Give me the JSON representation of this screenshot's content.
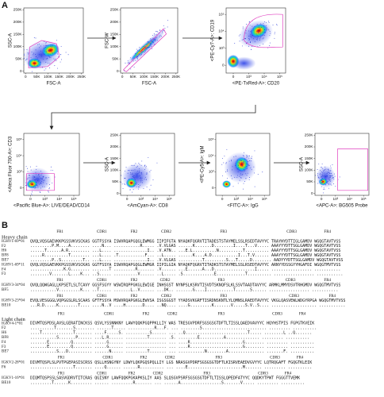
{
  "panel_a": {
    "label": "A",
    "plots": [
      {
        "ylabel": "SSC-A",
        "xlabel": "FSC-A",
        "yticks": [
          "0",
          "50K",
          "100K",
          "150K",
          "200K",
          "250K"
        ],
        "xticks": [
          "0",
          "50K",
          "100K",
          "150K",
          "200K",
          "250K"
        ]
      },
      {
        "ylabel": "FSC-W",
        "xlabel": "FSC-A",
        "yticks": [
          "0",
          "50K",
          "100K",
          "150K",
          "200K",
          "250K"
        ],
        "xticks": [
          "0",
          "50K",
          "100K",
          "150K",
          "200K",
          "250K"
        ]
      },
      {
        "ylabel": "<PE-Cy7-A>: CD19",
        "xlabel": "<PE-TxRed-A>: CD20",
        "yticks": [
          "0",
          "10³",
          "10⁴",
          "10⁵"
        ],
        "xticks": [
          "0",
          "10³",
          "10⁴",
          "10⁵"
        ]
      },
      {
        "ylabel": "<Alexa Fluor 700-A>: CD3",
        "xlabel": "<Pacific Blue-A>: LIVE/DEAD/CD14",
        "yticks": [
          "0",
          "10³",
          "10⁴",
          "10⁵"
        ],
        "xticks": [
          "0",
          "10³",
          "10⁴",
          "10⁵"
        ]
      },
      {
        "ylabel": "SSC-A",
        "xlabel": "<AmCyan-A>: CD8",
        "yticks": [
          "0",
          "50K",
          "100K",
          "150K",
          "200K",
          "250K"
        ],
        "xticks": [
          "0",
          "10³",
          "10⁴",
          "10⁵"
        ]
      },
      {
        "ylabel": "<PE-Cy5-A>: IgM",
        "xlabel": "<FITC-A>: IgG",
        "yticks": [
          "0",
          "10³",
          "10⁴",
          "10⁵"
        ],
        "xticks": [
          "0",
          "10³",
          "10⁴",
          "10⁵"
        ]
      },
      {
        "ylabel": "SSC-A",
        "xlabel": "<APC-A>: BG505 Probe",
        "yticks": [
          "0",
          "50K",
          "100K",
          "150K",
          "200K",
          "250K"
        ],
        "xticks": [
          "0",
          "10³",
          "10⁴",
          "10⁵"
        ]
      }
    ]
  },
  "panel_b": {
    "label": "B",
    "sections": [
      {
        "title": "Heavy chain",
        "blocks": [
          {
            "headers": [
              "FR1",
              "CDR1",
              "FR2",
              "CDR2",
              "FR3",
              "CDR3",
              "FR4"
            ],
            "rows": [
              [
                "IGHV1-69*01",
                "QVQLVQSGAEVKKPGSSVKVSCKAS GGTFSSYA ISWVRQAPGQGLEWMGG IIPIFGTA NYAQKFQGRVTITADESTSTAYMELSSLRSEDTAVYYC TRAYHYDTTIGLGAMDV WGQGTAVTVSS"
              ],
              [
                "F2",
                ".........P.M....A........ ....N... ...........R..... .V.VLGAS ......K.......D........I....T...V..... AAAYYYDTTSGLGAMDV WGQGTAVTVSS"
              ],
              [
                "H6",
                "......T......A.R......... ...L.... ..............I.. .V.ATN.. ...E.L..........N..........T.......... AAAYYYDTTSGLGAMDV WGQGTAVTVSS"
              ],
              [
                "BF8",
                ".....R..........T........ ...L.... .T...........F... ..L..... ......K....A.D...........I...T.V...... AAAYYYDTTSGLGAMDV WGQGTAVTVSS"
              ],
              [
                "BE7",
                ".........P..S.........T.. ...L.... ..............I.. .V.VLGAS ..........T.........S...T.....D........ AADYYYDTTSGLGAMDV WGQGTAVTVSS"
              ],
              [
                "IGHV1-69*11",
                "QVQLVQSGAEVKKPGSSVKVSCKAS GGTFSSYA ISWVRQAPGQGLEWMGR IIPILGIA NYAQKFQGRVTITADKSTSTAYMELSSLRSEDTAVYYC ARNYYDSSGYYHGAFDI WGQGTMVTVSS"
              ],
              [
                "F4",
                "..............K.G........ .......T .........R....... .V...... ...E......A...D.................I..... ................. ..........."
              ],
              [
                "F3",
                "........V.......L....K... ..S..... ..........V...... ..L..... .S.............E............T.......... ................. ..........."
              ]
            ]
          },
          {
            "headers": [
              "FR1",
              "CDR1",
              "FR2",
              "CDR2",
              "FR3",
              "CDR3",
              "FR4"
            ],
            "rows": [
              [
                "IGHV3-34*04",
                "QVQLQQWGAGLLKPSETLSLTCAVY GGSFSGYY WSWIRQPPGKGLEWIGE INHSGST NYNPSLKSRVTISVDTSKNQFSLKLSSVTAADTAVYYC ARMKLMMYDSVTRHGMDV WGQGTMVTVSS"
              ],
              [
                "BF5",
                "...........V.........K... ..T..... .......L..V...... ...DK.. .......G....I...........T......S...... ................. ..........."
              ]
            ]
          },
          {
            "headers": [
              "FR1",
              "CDR1",
              "FR2",
              "CDR2",
              "FR3",
              "CDR3",
              "FR4"
            ],
            "rows": [
              [
                "IGHV3-23*04",
                "EVQLVESGGGLVQPGGSLRLSCAAS GFTFSSYA MSWVRQAPGKGLEWVSA ISGSGGST YYADSVKGRFTISRDNSKNTLYLQMNSLRAEDTAVYYC VKGLQASVEWLWDGYRPGA WGQGTMVTVSS"
              ],
              [
                "BE10",
                "...R.D.....K........T.... ....N..V ....H.......D.... ..NQ.... ....G.........K.......V.....S.V..S.... ................... ..........."
              ]
            ]
          }
        ]
      },
      {
        "title": "Light chain",
        "blocks": [
          {
            "headers": [
              "FR1",
              "CDR1",
              "FR2",
              "CDR2",
              "FR3",
              "CDR3",
              "FR4"
            ],
            "rows": [
              [
                "IGKV4-1*01",
                "DIVMTQSPDSLAVSLGERATINCKSS QSVLYSSNNKNY LAWYQQKPGQPPKLLIY WAS TRESGVPDRFSGSGSGTDFTLTISSLQAEDVAVYYC HQYHSTPIS FGPGTKVEIK"
              ],
              [
                "F2",
                "..........T.......S........ ......T..... ...........R...F. ... ........S........................... ......... .........."
              ],
              [
                "H6",
                "....T.............T....... ....F.....S. ..........S...... ... ..Q..........................T..... ........L ..Q......."
              ],
              [
                "BF8",
                "...........S.......P...... ...L.R...... .........T....... .S. ........E..........A.............. ......... .........."
              ],
              [
                "F4",
                ".......E.........Q........ .....G...... ................. ... ....R......................G........ ......... .........."
              ],
              [
                "F3",
                ".......E.........Q........ .....G...... ................. ... ....R......................G........ ......... .........."
              ],
              [
                "BE7",
                "...........S...D.......... ......N..... .........T....... ... ...........N........A............... .......F. .........."
              ]
            ]
          },
          {
            "headers": [
              "FR1",
              "CDR1",
              "FR2",
              "CDR2",
              "FR3",
              "CDR3",
              "FR4"
            ],
            "rows": [
              [
                "IGKV2-28*01",
                "DIVMTQSPLSLPVTPGEPASISCRSS QSLLHSNGYNY LDWYLQKPGQSPQLLIY LGS NRASGVPDRFSGSGSGTDFTLKISRVEAEDVGVYYC LQTRQGAFT FGQGTKLEIK"
              ],
              [
                "F6",
                "..................T....... ....Q...... ......R.......... ... ....E.......................M....... ......... .........."
              ]
            ]
          },
          {
            "headers": [
              "FR1",
              "CDR1",
              "FR2",
              "CDR2",
              "FR3",
              "CDR3",
              "FR4"
            ],
            "rows": [
              [
                "IGKV1-16*01",
                "DIQMTQSPSSLSASVGDRVTITCRAS QGISNY LAWFQQKPGKAPKSLIY AAS SLQSGVPSRFSGSGSGTDFTLTISSLQPEDFATYYC QQDKYTPWT FGGGTTVEMK"
              ],
              [
                "BE10",
                ".........T......K......... ...... .........R....... ... ......A.................S.......V..... ......... .........."
              ]
            ]
          }
        ]
      }
    ]
  }
}
